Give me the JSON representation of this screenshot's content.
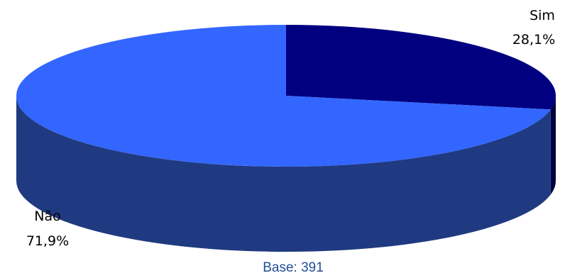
{
  "chart_data": {
    "type": "pie",
    "style": "3d",
    "slices": [
      {
        "label": "Sim",
        "value": 28.1,
        "value_label": "28,1%",
        "color": "#000080",
        "side_color": "#000040"
      },
      {
        "label": "Não",
        "value": 71.9,
        "value_label": "71,9%",
        "color": "#3366ff",
        "side_color": "#1f3a80"
      }
    ],
    "footer": "Base: 391"
  }
}
